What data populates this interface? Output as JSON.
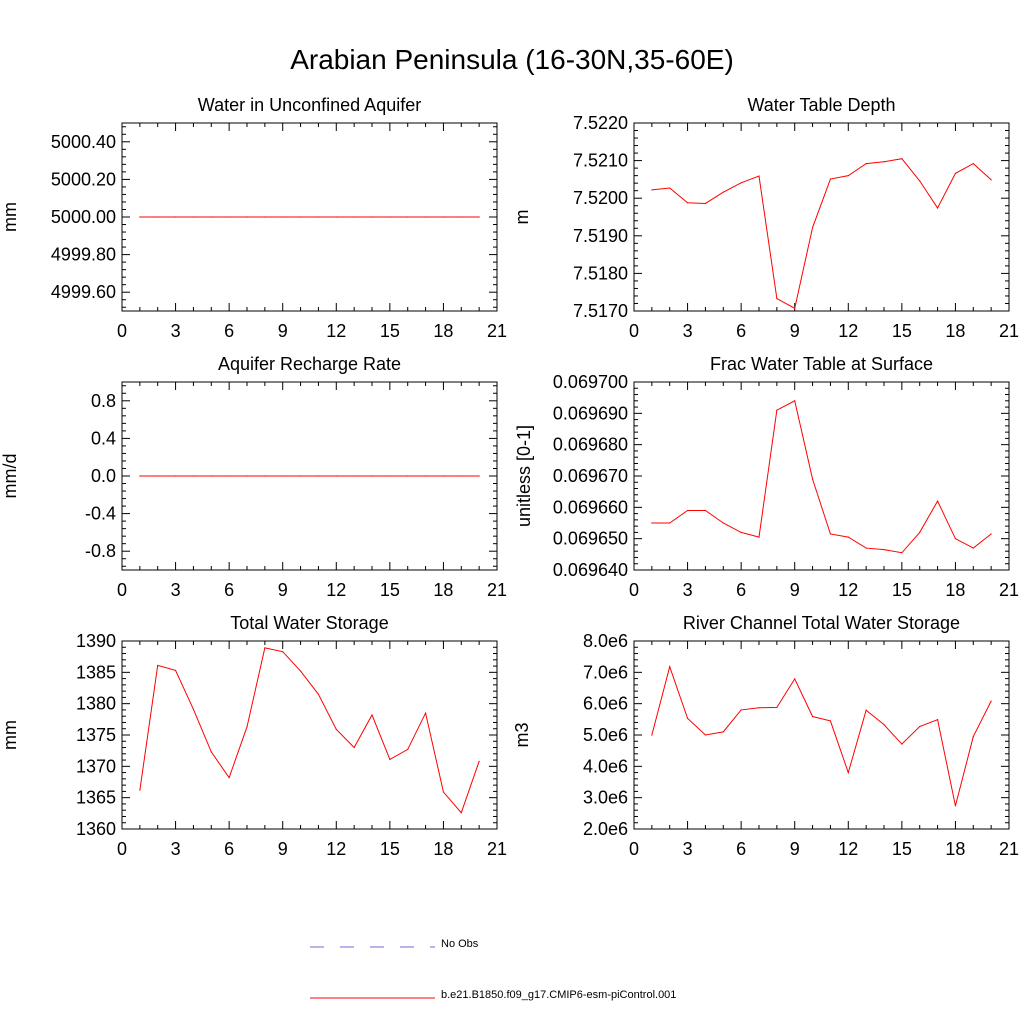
{
  "title": "Arabian Peninsula (16-30N,35-60E)",
  "colors": {
    "series": "#ff0000",
    "obs": "#6b6bd6"
  },
  "legend": [
    {
      "label": "No Obs",
      "style": "dashed",
      "color": "#6b6bd6"
    },
    {
      "label": "b.e21.B1850.f09_g17.CMIP6-esm-piControl.001",
      "style": "solid",
      "color": "#ff0000"
    }
  ],
  "chart_data": [
    {
      "type": "line",
      "title": "Water in Unconfined Aquifer",
      "xlabel": "",
      "ylabel": "mm",
      "xlim": [
        0,
        21
      ],
      "ylim": [
        4999.5,
        5000.5
      ],
      "xticks": [
        0,
        3,
        6,
        9,
        12,
        15,
        18,
        21
      ],
      "yticks": [
        4999.6,
        4999.8,
        5000.0,
        5000.2,
        5000.4
      ],
      "ytick_labels": [
        "4999.60",
        "4999.80",
        "5000.00",
        "5000.20",
        "5000.40"
      ],
      "grid": false,
      "x": [
        1,
        2,
        3,
        4,
        5,
        6,
        7,
        8,
        9,
        10,
        11,
        12,
        13,
        14,
        15,
        16,
        17,
        18,
        19,
        20
      ],
      "series": [
        {
          "name": "b.e21.B1850.f09_g17.CMIP6-esm-piControl.001",
          "values": [
            5000,
            5000,
            5000,
            5000,
            5000,
            5000,
            5000,
            5000,
            5000,
            5000,
            5000,
            5000,
            5000,
            5000,
            5000,
            5000,
            5000,
            5000,
            5000,
            5000
          ]
        }
      ]
    },
    {
      "type": "line",
      "title": "Water Table Depth",
      "xlabel": "",
      "ylabel": "m",
      "xlim": [
        0,
        21
      ],
      "ylim": [
        7.517,
        7.522
      ],
      "xticks": [
        0,
        3,
        6,
        9,
        12,
        15,
        18,
        21
      ],
      "yticks": [
        7.517,
        7.518,
        7.519,
        7.52,
        7.521,
        7.522
      ],
      "ytick_labels": [
        "7.5170",
        "7.5180",
        "7.5190",
        "7.5200",
        "7.5210",
        "7.5220"
      ],
      "grid": false,
      "x": [
        1,
        2,
        3,
        4,
        5,
        6,
        7,
        8,
        9,
        10,
        11,
        12,
        13,
        14,
        15,
        16,
        17,
        18,
        19,
        20
      ],
      "series": [
        {
          "name": "b.e21.B1850.f09_g17.CMIP6-esm-piControl.001",
          "values": [
            7.52022,
            7.52027,
            7.51988,
            7.51986,
            7.52016,
            7.52041,
            7.52059,
            7.51733,
            7.51707,
            7.51922,
            7.52051,
            7.5206,
            7.52092,
            7.52097,
            7.52105,
            7.52046,
            7.51974,
            7.52066,
            7.52092,
            7.52049
          ]
        }
      ]
    },
    {
      "type": "line",
      "title": "Aquifer Recharge Rate",
      "xlabel": "",
      "ylabel": "mm/d",
      "xlim": [
        0,
        21
      ],
      "ylim": [
        -1.0,
        1.0
      ],
      "xticks": [
        0,
        3,
        6,
        9,
        12,
        15,
        18,
        21
      ],
      "yticks": [
        -0.8,
        -0.4,
        0.0,
        0.4,
        0.8
      ],
      "ytick_labels": [
        "-0.8",
        "-0.4",
        "0.0",
        "0.4",
        "0.8"
      ],
      "grid": false,
      "x": [
        1,
        2,
        3,
        4,
        5,
        6,
        7,
        8,
        9,
        10,
        11,
        12,
        13,
        14,
        15,
        16,
        17,
        18,
        19,
        20
      ],
      "series": [
        {
          "name": "b.e21.B1850.f09_g17.CMIP6-esm-piControl.001",
          "values": [
            0,
            0,
            0,
            0,
            0,
            0,
            0,
            0,
            0,
            0,
            0,
            0,
            0,
            0,
            0,
            0,
            0,
            0,
            0,
            0
          ]
        }
      ]
    },
    {
      "type": "line",
      "title": "Frac Water Table at Surface",
      "xlabel": "",
      "ylabel": "unitless [0-1]",
      "xlim": [
        0,
        21
      ],
      "ylim": [
        0.06964,
        0.0697
      ],
      "xticks": [
        0,
        3,
        6,
        9,
        12,
        15,
        18,
        21
      ],
      "yticks": [
        0.06964,
        0.06965,
        0.06966,
        0.06967,
        0.06968,
        0.06969,
        0.0697
      ],
      "ytick_labels": [
        "0.069640",
        "0.069650",
        "0.069660",
        "0.069670",
        "0.069680",
        "0.069690",
        "0.069700"
      ],
      "grid": false,
      "x": [
        1,
        2,
        3,
        4,
        5,
        6,
        7,
        8,
        9,
        10,
        11,
        12,
        13,
        14,
        15,
        16,
        17,
        18,
        19,
        20
      ],
      "series": [
        {
          "name": "b.e21.B1850.f09_g17.CMIP6-esm-piControl.001",
          "values": [
            0.069655,
            0.069655,
            0.069659,
            0.069659,
            0.069655,
            0.069652,
            0.0696505,
            0.069691,
            0.069694,
            0.069669,
            0.0696515,
            0.0696505,
            0.069647,
            0.0696465,
            0.0696455,
            0.069652,
            0.069662,
            0.06965,
            0.069647,
            0.0696515
          ]
        }
      ]
    },
    {
      "type": "line",
      "title": "Total Water Storage",
      "xlabel": "",
      "ylabel": "mm",
      "xlim": [
        0,
        21
      ],
      "ylim": [
        1360,
        1390
      ],
      "xticks": [
        0,
        3,
        6,
        9,
        12,
        15,
        18,
        21
      ],
      "yticks": [
        1360,
        1365,
        1370,
        1375,
        1380,
        1385,
        1390
      ],
      "ytick_labels": [
        "1360",
        "1365",
        "1370",
        "1375",
        "1380",
        "1385",
        "1390"
      ],
      "grid": false,
      "x": [
        1,
        2,
        3,
        4,
        5,
        6,
        7,
        8,
        9,
        10,
        11,
        12,
        13,
        14,
        15,
        16,
        17,
        18,
        19,
        20
      ],
      "series": [
        {
          "name": "b.e21.B1850.f09_g17.CMIP6-esm-piControl.001",
          "values": [
            1366.2,
            1386.1,
            1385.3,
            1379.1,
            1372.3,
            1368.2,
            1376.3,
            1388.9,
            1388.3,
            1385.2,
            1381.5,
            1375.9,
            1373,
            1378.2,
            1371.1,
            1372.7,
            1378.5,
            1365.9,
            1362.6,
            1370.8
          ]
        }
      ]
    },
    {
      "type": "line",
      "title": "River Channel Total Water Storage",
      "xlabel": "",
      "ylabel": "m3",
      "xlim": [
        0,
        21
      ],
      "ylim": [
        2000000,
        8000000
      ],
      "xticks": [
        0,
        3,
        6,
        9,
        12,
        15,
        18,
        21
      ],
      "yticks": [
        2000000,
        3000000,
        4000000,
        5000000,
        6000000,
        7000000,
        8000000
      ],
      "ytick_labels": [
        "2.0e6",
        "3.0e6",
        "4.0e6",
        "5.0e6",
        "6.0e6",
        "7.0e6",
        "8.0e6"
      ],
      "grid": false,
      "x": [
        1,
        2,
        3,
        4,
        5,
        6,
        7,
        8,
        9,
        10,
        11,
        12,
        13,
        14,
        15,
        16,
        17,
        18,
        19,
        20
      ],
      "series": [
        {
          "name": "b.e21.B1850.f09_g17.CMIP6-esm-piControl.001",
          "values": [
            5000000,
            7180000,
            5530000,
            5000000,
            5100000,
            5800000,
            5870000,
            5880000,
            6790000,
            5590000,
            5450000,
            3800000,
            5790000,
            5330000,
            4710000,
            5270000,
            5490000,
            2740000,
            4950000,
            6080000
          ]
        }
      ]
    }
  ]
}
